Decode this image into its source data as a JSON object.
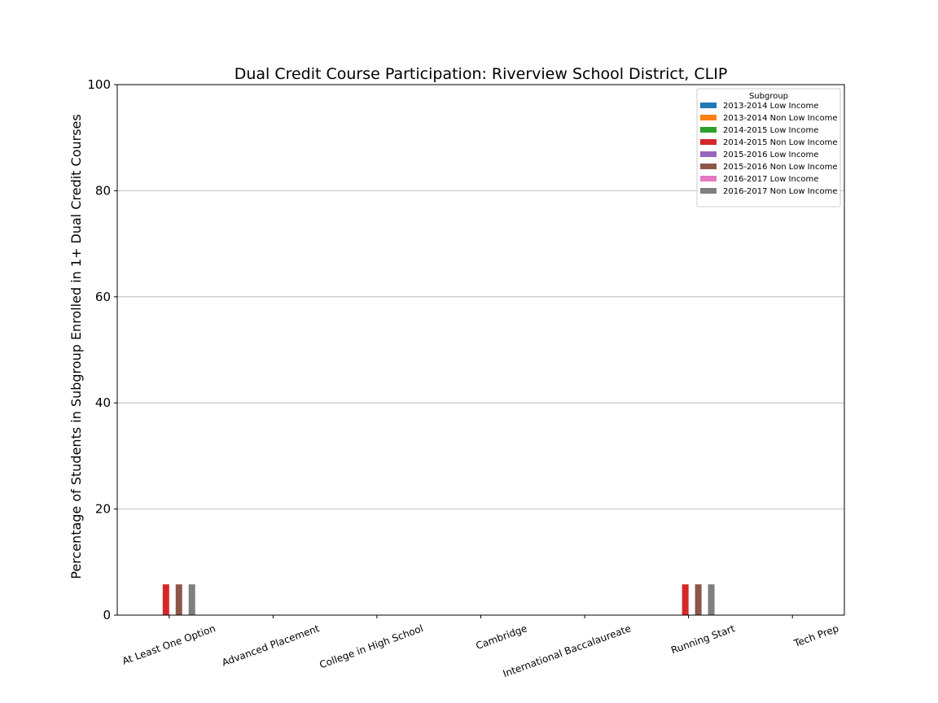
{
  "chart_data": {
    "type": "bar",
    "title": "Dual Credit Course Participation: Riverview School District, CLIP",
    "xlabel": "",
    "ylabel": "Percentage of Students in Subgroup Enrolled in 1+ Dual Credit Courses",
    "ylim": [
      0,
      100
    ],
    "yticks": [
      0,
      20,
      40,
      60,
      80,
      100
    ],
    "grid": "y",
    "legend_title": "Subgroup",
    "legend_position": "top-right",
    "categories": [
      "At Least One Option",
      "Advanced Placement",
      "College in High School",
      "Cambridge",
      "International Baccalaureate",
      "Running Start",
      "Tech Prep"
    ],
    "series": [
      {
        "name": "2013-2014 Low Income",
        "color": "#1f77b4",
        "values": [
          0,
          0,
          0,
          0,
          0,
          0,
          0
        ]
      },
      {
        "name": "2013-2014 Non Low Income",
        "color": "#ff7f0e",
        "values": [
          0,
          0,
          0,
          0,
          0,
          0,
          0
        ]
      },
      {
        "name": "2014-2015 Low Income",
        "color": "#2ca02c",
        "values": [
          0,
          0,
          0,
          0,
          0,
          0,
          0
        ]
      },
      {
        "name": "2014-2015 Non Low Income",
        "color": "#d62728",
        "values": [
          5.8,
          0,
          0,
          0,
          0,
          5.8,
          0
        ]
      },
      {
        "name": "2015-2016 Low Income",
        "color": "#9467bd",
        "values": [
          0,
          0,
          0,
          0,
          0,
          0,
          0
        ]
      },
      {
        "name": "2015-2016 Non Low Income",
        "color": "#8c564b",
        "values": [
          5.8,
          0,
          0,
          0,
          0,
          5.8,
          0
        ]
      },
      {
        "name": "2016-2017 Low Income",
        "color": "#e377c2",
        "values": [
          0,
          0,
          0,
          0,
          0,
          0,
          0
        ]
      },
      {
        "name": "2016-2017 Non Low Income",
        "color": "#7f7f7f",
        "values": [
          5.8,
          0,
          0,
          0,
          0,
          5.8,
          0
        ]
      }
    ]
  }
}
